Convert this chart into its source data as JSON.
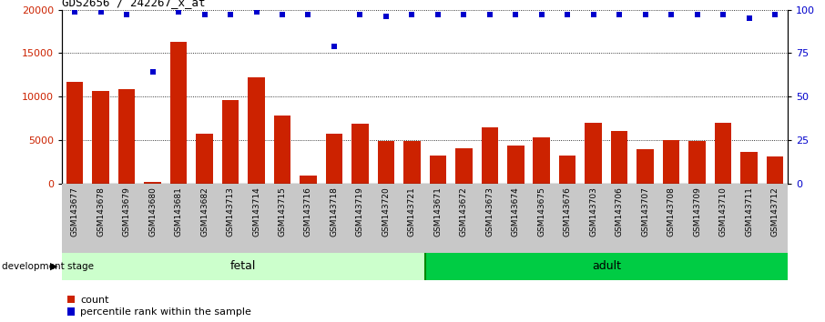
{
  "title": "GDS2656 / 242267_x_at",
  "categories": [
    "GSM143677",
    "GSM143678",
    "GSM143679",
    "GSM143680",
    "GSM143681",
    "GSM143682",
    "GSM143713",
    "GSM143714",
    "GSM143715",
    "GSM143716",
    "GSM143718",
    "GSM143719",
    "GSM143720",
    "GSM143721",
    "GSM143671",
    "GSM143672",
    "GSM143673",
    "GSM143674",
    "GSM143675",
    "GSM143676",
    "GSM143703",
    "GSM143706",
    "GSM143707",
    "GSM143708",
    "GSM143709",
    "GSM143710",
    "GSM143711",
    "GSM143712"
  ],
  "counts": [
    11700,
    10600,
    10900,
    200,
    16300,
    5700,
    9600,
    12200,
    7800,
    900,
    5700,
    6900,
    4900,
    4900,
    3200,
    4100,
    6500,
    4400,
    5300,
    3200,
    7000,
    6000,
    4000,
    5000,
    4900,
    7000,
    3600,
    3100
  ],
  "percentile_ranks": [
    99,
    99,
    97,
    64,
    99,
    97,
    97,
    99,
    97,
    97,
    79,
    97,
    96,
    97,
    97,
    97,
    97,
    97,
    97,
    97,
    97,
    97,
    97,
    97,
    97,
    97,
    95,
    97
  ],
  "fetal_count": 14,
  "adult_count": 14,
  "ylim_left": [
    0,
    20000
  ],
  "ylim_right": [
    0,
    100
  ],
  "yticks_left": [
    0,
    5000,
    10000,
    15000,
    20000
  ],
  "yticks_right": [
    0,
    25,
    50,
    75,
    100
  ],
  "bar_color": "#cc2200",
  "dot_color": "#0000cc",
  "fetal_bg": "#ccffcc",
  "adult_bg": "#00cc44",
  "label_bg": "#c8c8c8",
  "development_label": "development stage",
  "fetal_label": "fetal",
  "adult_label": "adult",
  "legend_count": "count",
  "legend_pct": "percentile rank within the sample"
}
